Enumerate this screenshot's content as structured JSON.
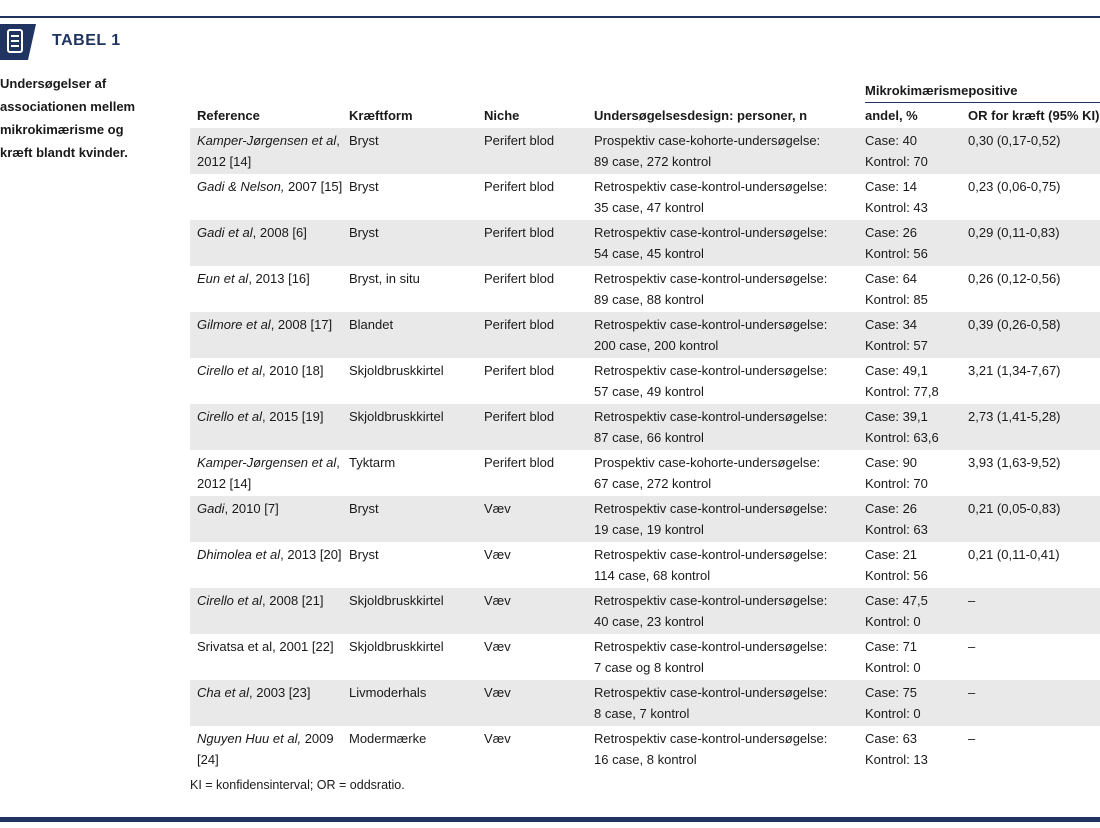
{
  "header": {
    "title": "TABEL 1"
  },
  "caption": "Undersøgelser af associationen mellem mikrokimærisme og kræft blandt kvinder.",
  "table": {
    "group_header": "Mikrokimærismepositive",
    "columns": [
      "Reference",
      "Kræftform",
      "Niche",
      "Undersøgelsesdesign: personer, n",
      "andel, %",
      "OR for kræft (95% KI)"
    ],
    "rows": [
      {
        "reference": {
          "italic": "Kamper-Jørgensen et al",
          "plain": ", 2012 [14]"
        },
        "cancer": "Bryst",
        "niche": "Perifert blod",
        "design": [
          "Prospektiv case-kohorte-undersøgelse:",
          "89 case, 272 kontrol"
        ],
        "share": [
          "Case: 40",
          "Kontrol: 70"
        ],
        "or": "0,30 (0,17-0,52)"
      },
      {
        "reference": {
          "italic": "Gadi & Nelson,",
          "plain": " 2007 [15]"
        },
        "cancer": "Bryst",
        "niche": "Perifert blod",
        "design": [
          "Retrospektiv case-kontrol-undersøgelse:",
          "35 case, 47 kontrol"
        ],
        "share": [
          "Case: 14",
          "Kontrol: 43"
        ],
        "or": "0,23 (0,06-0,75)"
      },
      {
        "reference": {
          "italic": "Gadi et al",
          "plain": ", 2008 [6]"
        },
        "cancer": "Bryst",
        "niche": "Perifert blod",
        "design": [
          "Retrospektiv case-kontrol-undersøgelse:",
          "54 case, 45 kontrol"
        ],
        "share": [
          "Case: 26",
          "Kontrol: 56"
        ],
        "or": "0,29 (0,11-0,83)"
      },
      {
        "reference": {
          "italic": "Eun et al",
          "plain": ", 2013 [16]"
        },
        "cancer": "Bryst, in situ",
        "niche": "Perifert blod",
        "design": [
          "Retrospektiv case-kontrol-undersøgelse:",
          "89 case, 88 kontrol"
        ],
        "share": [
          "Case: 64",
          "Kontrol: 85"
        ],
        "or": "0,26 (0,12-0,56)"
      },
      {
        "reference": {
          "italic": "Gilmore et al",
          "plain": ", 2008 [17]"
        },
        "cancer": "Blandet",
        "niche": "Perifert blod",
        "design": [
          "Retrospektiv case-kontrol-undersøgelse:",
          "200 case, 200 kontrol"
        ],
        "share": [
          "Case: 34",
          "Kontrol: 57"
        ],
        "or": "0,39 (0,26-0,58)"
      },
      {
        "reference": {
          "italic": "Cirello et al",
          "plain": ", 2010 [18]"
        },
        "cancer": "Skjoldbruskkirtel",
        "niche": "Perifert blod",
        "design": [
          "Retrospektiv case-kontrol-undersøgelse:",
          "57 case, 49 kontrol"
        ],
        "share": [
          "Case: 49,1",
          "Kontrol: 77,8"
        ],
        "or": "3,21 (1,34-7,67)"
      },
      {
        "reference": {
          "italic": "Cirello et al",
          "plain": ", 2015 [19]"
        },
        "cancer": "Skjoldbruskkirtel",
        "niche": "Perifert blod",
        "design": [
          "Retrospektiv case-kontrol-undersøgelse:",
          "87 case, 66 kontrol"
        ],
        "share": [
          "Case: 39,1",
          "Kontrol: 63,6"
        ],
        "or": "2,73 (1,41-5,28)"
      },
      {
        "reference": {
          "italic": "Kamper-Jørgensen et al",
          "plain": ", 2012 [14]"
        },
        "cancer": "Tyktarm",
        "niche": "Perifert blod",
        "design": [
          "Prospektiv case-kohorte-undersøgelse:",
          "67 case, 272 kontrol"
        ],
        "share": [
          "Case: 90",
          "Kontrol: 70"
        ],
        "or": "3,93 (1,63-9,52)"
      },
      {
        "reference": {
          "italic": "Gadi",
          "plain": ", 2010 [7]"
        },
        "cancer": "Bryst",
        "niche": "Væv",
        "design": [
          "Retrospektiv case-kontrol-undersøgelse:",
          "19 case, 19 kontrol"
        ],
        "share": [
          "Case: 26",
          "Kontrol: 63"
        ],
        "or": "0,21 (0,05-0,83)"
      },
      {
        "reference": {
          "italic": "Dhimolea et al",
          "plain": ", 2013 [20]"
        },
        "cancer": "Bryst",
        "niche": "Væv",
        "design": [
          "Retrospektiv case-kontrol-undersøgelse:",
          "114 case, 68 kontrol"
        ],
        "share": [
          "Case: 21",
          "Kontrol: 56"
        ],
        "or": "0,21 (0,11-0,41)"
      },
      {
        "reference": {
          "italic": "Cirello et al",
          "plain": ", 2008 [21]"
        },
        "cancer": "Skjoldbruskkirtel",
        "niche": "Væv",
        "design": [
          "Retrospektiv case-kontrol-undersøgelse:",
          "40 case, 23 kontrol"
        ],
        "share": [
          "Case: 47,5",
          "Kontrol: 0"
        ],
        "or": "–"
      },
      {
        "reference": {
          "plain": "Srivatsa et al, 2001 [22]"
        },
        "cancer": "Skjoldbruskkirtel",
        "niche": "Væv",
        "design": [
          "Retrospektiv case-kontrol-undersøgelse:",
          "7 case og 8 kontrol"
        ],
        "share": [
          "Case: 71",
          "Kontrol: 0"
        ],
        "or": "–"
      },
      {
        "reference": {
          "italic": "Cha et al",
          "plain": ", 2003 [23]"
        },
        "cancer": "Livmoderhals",
        "niche": "Væv",
        "design": [
          "Retrospektiv case-kontrol-undersøgelse:",
          "8 case, 7 kontrol"
        ],
        "share": [
          "Case: 75",
          "Kontrol: 0"
        ],
        "or": "–"
      },
      {
        "reference": {
          "italic": "Nguyen Huu et al,",
          "plain": " 2009 [24]"
        },
        "cancer": "Modermærke",
        "niche": "Væv",
        "design": [
          "Retrospektiv case-kontrol-undersøgelse:",
          "16 case, 8 kontrol"
        ],
        "share": [
          "Case: 63",
          "Kontrol: 13"
        ],
        "or": "–"
      }
    ]
  },
  "footnote": "KI = konfidensinterval;   OR = oddsratio."
}
